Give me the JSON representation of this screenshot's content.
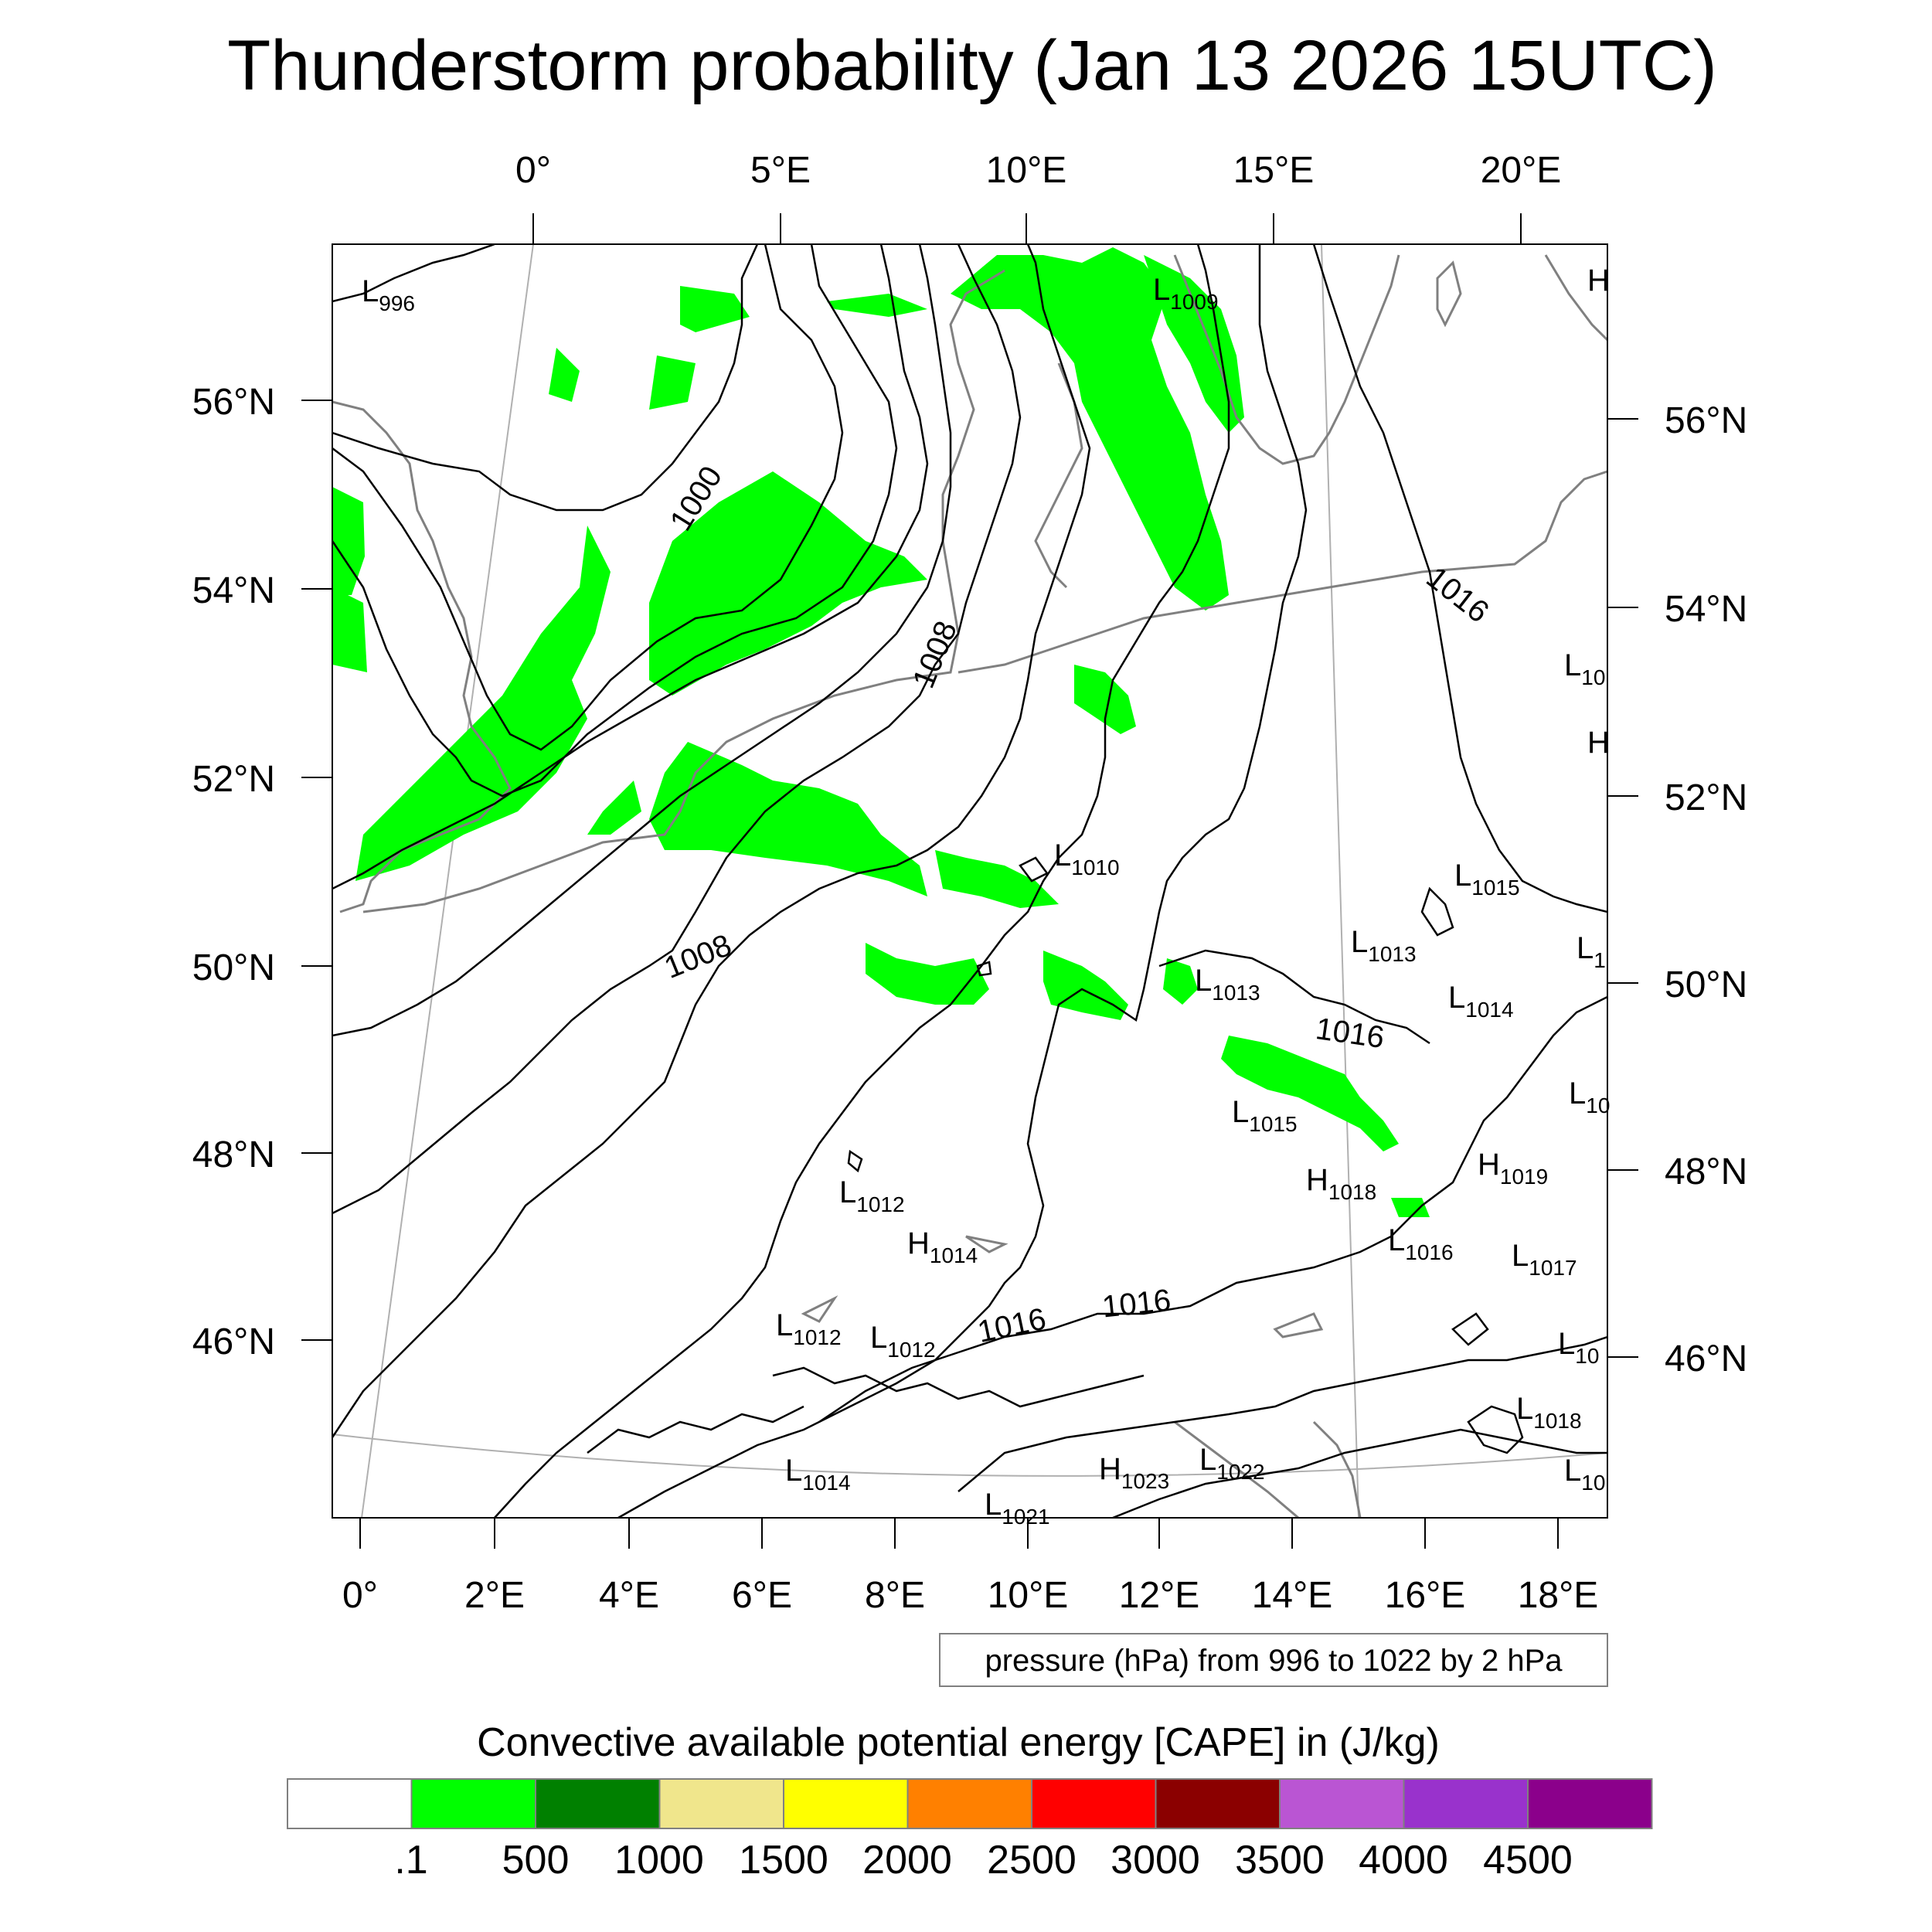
{
  "title": "Thunderstorm probability (Jan 13 2026 15UTC)",
  "map": {
    "top_lon_labels": [
      "0°",
      "5°E",
      "10°E",
      "15°E",
      "20°E"
    ],
    "bottom_lon_labels": [
      "0°",
      "2°E",
      "4°E",
      "6°E",
      "8°E",
      "10°E",
      "12°E",
      "14°E",
      "16°E",
      "18°E"
    ],
    "left_lat_labels": [
      "56°N",
      "54°N",
      "52°N",
      "50°N",
      "48°N",
      "46°N"
    ],
    "right_lat_labels": [
      "56°N",
      "54°N",
      "52°N",
      "50°N",
      "48°N",
      "46°N"
    ],
    "contour_labels": [
      "1000",
      "1008",
      "1008",
      "1016",
      "1016",
      "1016",
      "1016"
    ],
    "pressure_centers": [
      {
        "type": "L",
        "value": "996"
      },
      {
        "type": "L",
        "value": "1009"
      },
      {
        "type": "L",
        "value": "1010"
      },
      {
        "type": "L",
        "value": "1013"
      },
      {
        "type": "L",
        "value": "1013"
      },
      {
        "type": "L",
        "value": "1014"
      },
      {
        "type": "L",
        "value": "1015"
      },
      {
        "type": "L",
        "value": "1015"
      },
      {
        "type": "H",
        "value": "1018"
      },
      {
        "type": "H",
        "value": "1019"
      },
      {
        "type": "L",
        "value": "1012"
      },
      {
        "type": "H",
        "value": "1014"
      },
      {
        "type": "L",
        "value": "1016"
      },
      {
        "type": "L",
        "value": "1017"
      },
      {
        "type": "L",
        "value": "1012"
      },
      {
        "type": "L",
        "value": "1012"
      },
      {
        "type": "L",
        "value": "1018"
      },
      {
        "type": "L",
        "value": "1014"
      },
      {
        "type": "H",
        "value": "1023"
      },
      {
        "type": "L",
        "value": "1022"
      },
      {
        "type": "L",
        "value": "10"
      },
      {
        "type": "L",
        "value": "1"
      },
      {
        "type": "L",
        "value": "10"
      },
      {
        "type": "L",
        "value": "10"
      },
      {
        "type": "L",
        "value": "10"
      },
      {
        "type": "H",
        "value": ""
      },
      {
        "type": "H",
        "value": ""
      },
      {
        "type": "L",
        "value": "1021"
      }
    ],
    "pressure_note": "pressure (hPa) from 996 to 1022 by 2 hPa"
  },
  "colorbar": {
    "label": "Convective available potential energy [CAPE] in (J/kg)",
    "colors": [
      "#ffffff",
      "#00ff00",
      "#008000",
      "#f0e68c",
      "#ffff00",
      "#ff8000",
      "#ff0000",
      "#8b0000",
      "#ba55d3",
      "#9932cc",
      "#8b008b"
    ],
    "tick_labels": [
      ".1",
      "500",
      "1000",
      "1500",
      "2000",
      "2500",
      "3000",
      "3500",
      "4000",
      "4500"
    ]
  },
  "colors": {
    "cape_green": "#00ff00",
    "coastline": "#808080",
    "isobar": "#000000"
  }
}
